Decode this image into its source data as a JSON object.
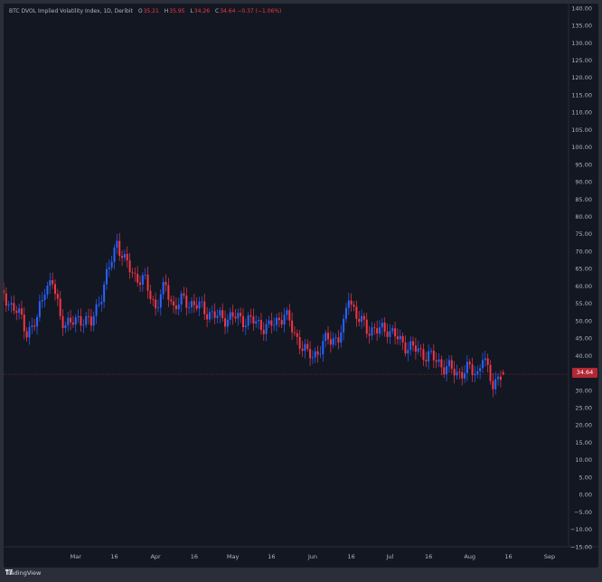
{
  "legend": {
    "title": "BTC DVOL Implied Volatility Index, 1D, Deribit",
    "o_label": "O",
    "o_value": "35.21",
    "h_label": "H",
    "h_value": "35.95",
    "l_label": "L",
    "l_value": "34.26",
    "c_label": "C",
    "c_value": "34.64",
    "change": "−0.37 (−1.06%)"
  },
  "last_price": "34.64",
  "footer": {
    "brand": "TradingView"
  },
  "colors": {
    "background": "#131722",
    "up": "#2962ff",
    "down": "#f23645",
    "text": "#b2b5be",
    "price_line": "#f23645"
  },
  "chart_data": {
    "type": "candlestick",
    "title": "BTC DVOL Implied Volatility Index, 1D, Deribit",
    "xlabel": "",
    "ylabel": "",
    "ylim": [
      -15,
      140
    ],
    "yticks": [
      "140.00",
      "135.00",
      "130.00",
      "125.00",
      "120.00",
      "115.00",
      "110.00",
      "105.00",
      "100.00",
      "95.00",
      "90.00",
      "85.00",
      "80.00",
      "75.00",
      "70.00",
      "65.00",
      "60.00",
      "55.00",
      "50.00",
      "45.00",
      "40.00",
      "35.00",
      "30.00",
      "25.00",
      "20.00",
      "15.00",
      "10.00",
      "5.00",
      "0.00",
      "−5.00",
      "−10.00",
      "−15.00"
    ],
    "xticks": [
      {
        "label": "Mar",
        "day": 15
      },
      {
        "label": "16",
        "day": 30
      },
      {
        "label": "Apr",
        "day": 46
      },
      {
        "label": "16",
        "day": 61
      },
      {
        "label": "May",
        "day": 76
      },
      {
        "label": "16",
        "day": 91
      },
      {
        "label": "Jun",
        "day": 107
      },
      {
        "label": "16",
        "day": 122
      },
      {
        "label": "Jul",
        "day": 137
      },
      {
        "label": "16",
        "day": 152
      },
      {
        "label": "Aug",
        "day": 168
      },
      {
        "label": "16",
        "day": 183
      },
      {
        "label": "Sep",
        "day": 199
      }
    ],
    "xrange_days": [
      -13,
      206
    ],
    "anchors": [
      {
        "day": -13,
        "v": 57
      },
      {
        "day": -8,
        "v": 53
      },
      {
        "day": -4,
        "v": 47
      },
      {
        "day": 0,
        "v": 50
      },
      {
        "day": 3,
        "v": 60
      },
      {
        "day": 6,
        "v": 61
      },
      {
        "day": 9,
        "v": 51
      },
      {
        "day": 13,
        "v": 49
      },
      {
        "day": 18,
        "v": 51
      },
      {
        "day": 21,
        "v": 49
      },
      {
        "day": 25,
        "v": 58
      },
      {
        "day": 28,
        "v": 65
      },
      {
        "day": 31,
        "v": 73
      },
      {
        "day": 34,
        "v": 67
      },
      {
        "day": 38,
        "v": 63
      },
      {
        "day": 42,
        "v": 61
      },
      {
        "day": 46,
        "v": 54
      },
      {
        "day": 50,
        "v": 60
      },
      {
        "day": 53,
        "v": 54
      },
      {
        "day": 57,
        "v": 56
      },
      {
        "day": 63,
        "v": 54
      },
      {
        "day": 70,
        "v": 51
      },
      {
        "day": 77,
        "v": 51
      },
      {
        "day": 83,
        "v": 50
      },
      {
        "day": 90,
        "v": 48
      },
      {
        "day": 96,
        "v": 52
      },
      {
        "day": 101,
        "v": 45
      },
      {
        "day": 105,
        "v": 40
      },
      {
        "day": 109,
        "v": 41
      },
      {
        "day": 113,
        "v": 45
      },
      {
        "day": 117,
        "v": 45
      },
      {
        "day": 119,
        "v": 48
      },
      {
        "day": 121,
        "v": 58
      },
      {
        "day": 124,
        "v": 51
      },
      {
        "day": 128,
        "v": 48
      },
      {
        "day": 132,
        "v": 47
      },
      {
        "day": 136,
        "v": 48
      },
      {
        "day": 141,
        "v": 44
      },
      {
        "day": 146,
        "v": 42
      },
      {
        "day": 152,
        "v": 40
      },
      {
        "day": 158,
        "v": 37
      },
      {
        "day": 163,
        "v": 35
      },
      {
        "day": 168,
        "v": 36
      },
      {
        "day": 171,
        "v": 35
      },
      {
        "day": 173,
        "v": 40
      },
      {
        "day": 175,
        "v": 35
      },
      {
        "day": 177,
        "v": 32
      },
      {
        "day": 179,
        "v": 34
      },
      {
        "day": 181,
        "v": 34.64
      }
    ],
    "last": {
      "open": 35.21,
      "high": 35.95,
      "low": 34.26,
      "close": 34.64
    },
    "price_line": 34.64
  }
}
